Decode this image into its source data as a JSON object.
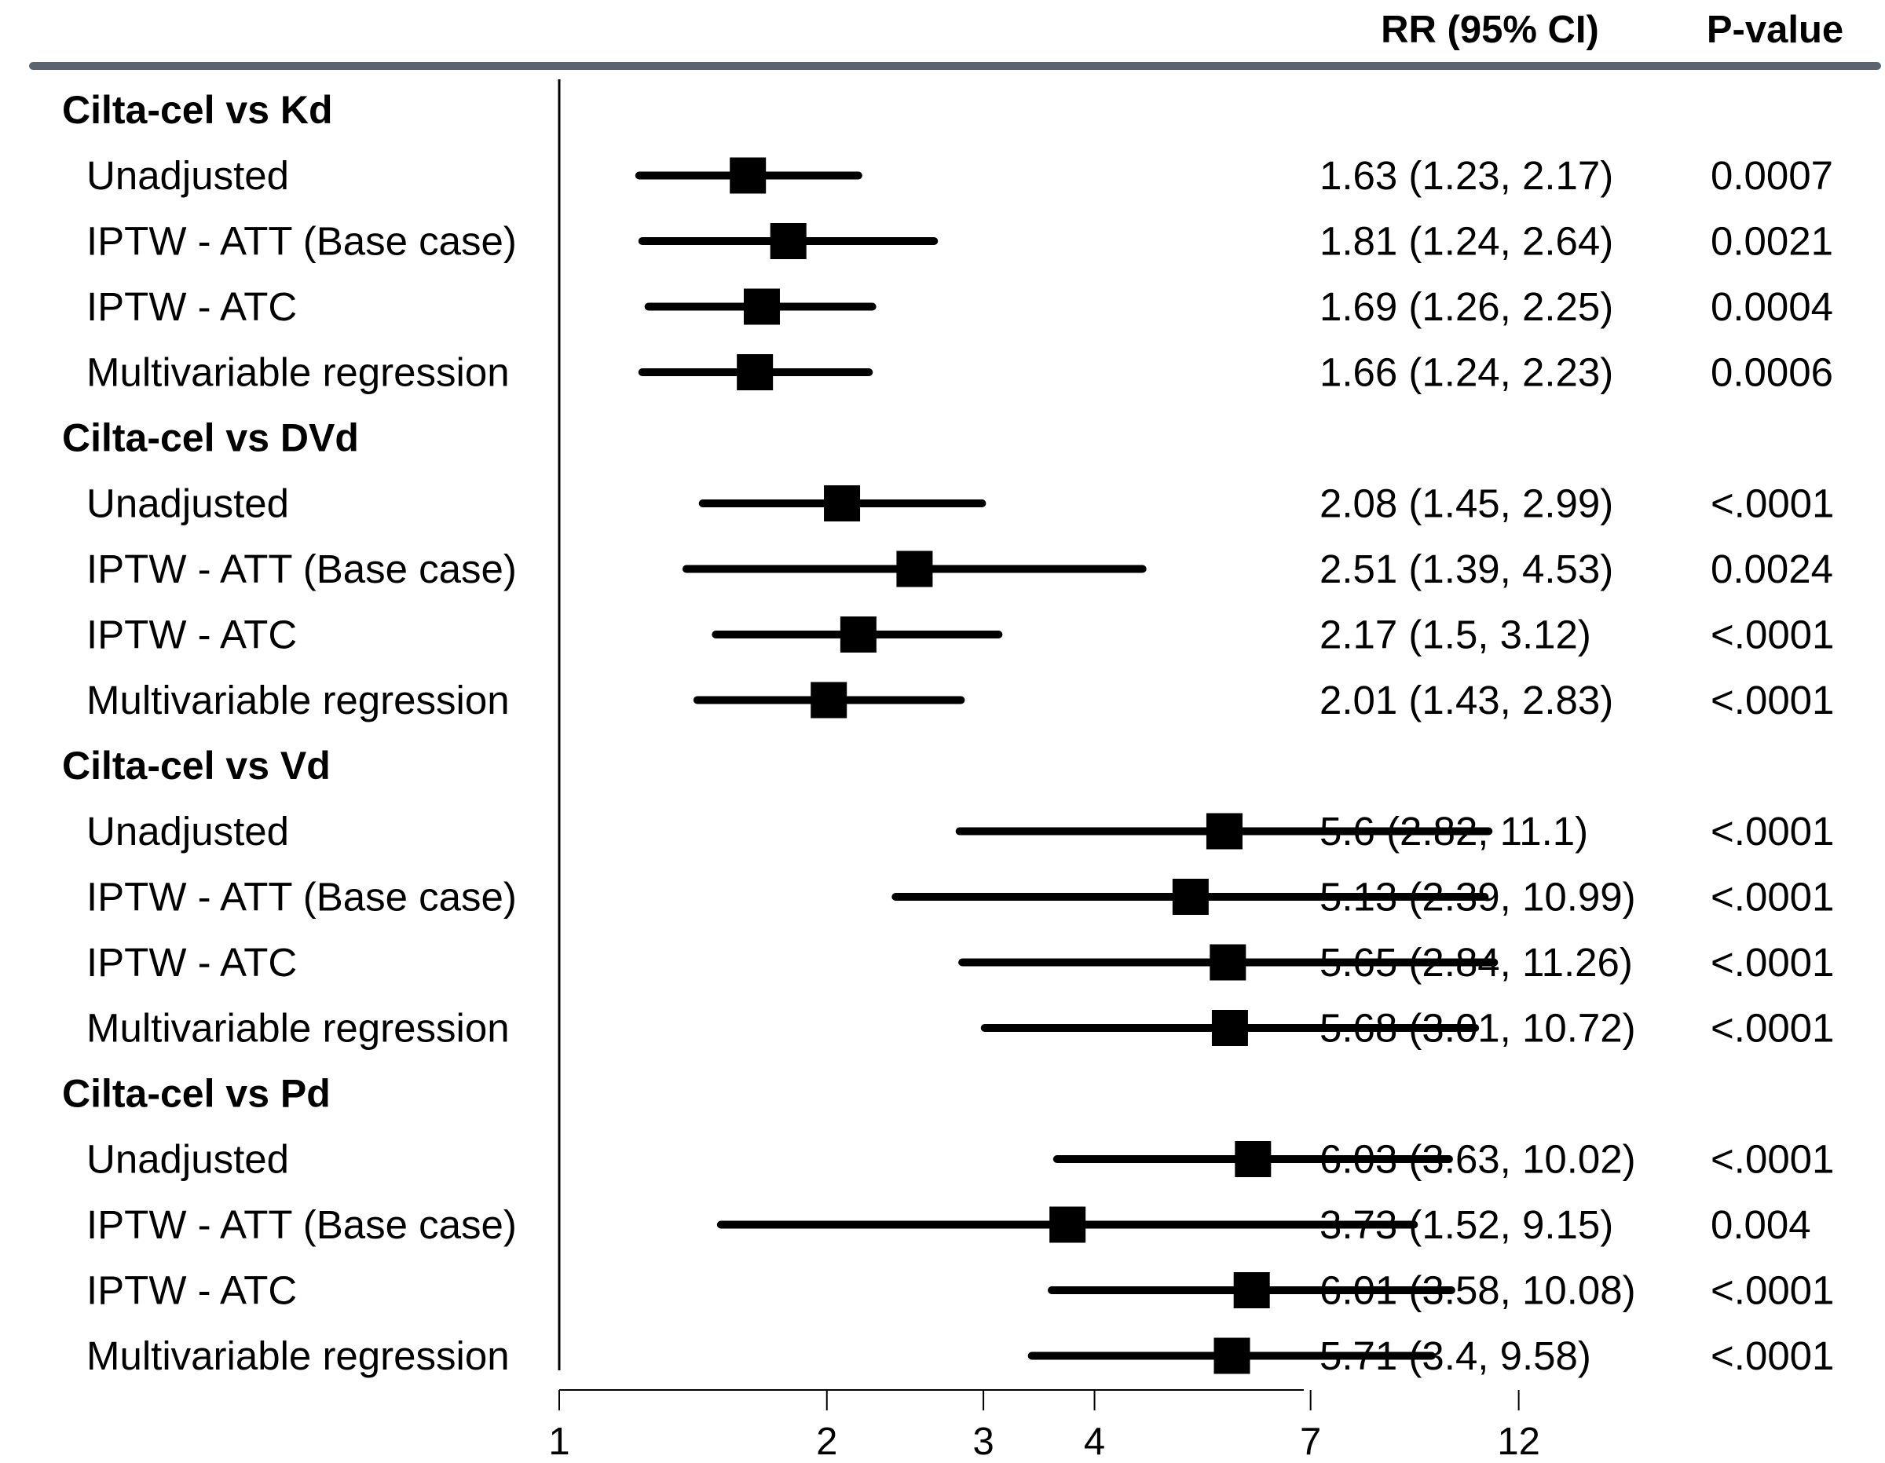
{
  "header": {
    "rr_label": "RR (95% CI)",
    "p_label": "P-value"
  },
  "colors": {
    "rule": "#5a6470",
    "ink": "#000000"
  },
  "chart_data": {
    "type": "forest",
    "title": "",
    "xlabel": "",
    "xscale": "log",
    "xlim": [
      1,
      18
    ],
    "xticks": [
      1,
      2,
      3,
      4,
      7,
      12
    ],
    "xtick_labels": [
      "1",
      "2",
      "3",
      "4",
      "7",
      "12"
    ],
    "reference_line": 1,
    "groups": [
      {
        "label": "Cilta-cel vs Kd",
        "rows": [
          {
            "label": "Unadjusted",
            "rr": 1.63,
            "lo": 1.23,
            "hi": 2.17,
            "rr_text": "1.63 (1.23, 2.17)",
            "p": "0.0007"
          },
          {
            "label": "IPTW - ATT (Base case)",
            "rr": 1.81,
            "lo": 1.24,
            "hi": 2.64,
            "rr_text": "1.81 (1.24, 2.64)",
            "p": "0.0021"
          },
          {
            "label": "IPTW - ATC",
            "rr": 1.69,
            "lo": 1.26,
            "hi": 2.25,
            "rr_text": "1.69 (1.26, 2.25)",
            "p": "0.0004"
          },
          {
            "label": "Multivariable regression",
            "rr": 1.66,
            "lo": 1.24,
            "hi": 2.23,
            "rr_text": "1.66 (1.24, 2.23)",
            "p": "0.0006"
          }
        ]
      },
      {
        "label": "Cilta-cel vs DVd",
        "rows": [
          {
            "label": "Unadjusted",
            "rr": 2.08,
            "lo": 1.45,
            "hi": 2.99,
            "rr_text": "2.08 (1.45, 2.99)",
            "p": "<.0001"
          },
          {
            "label": "IPTW - ATT (Base case)",
            "rr": 2.51,
            "lo": 1.39,
            "hi": 4.53,
            "rr_text": "2.51 (1.39, 4.53)",
            "p": "0.0024"
          },
          {
            "label": "IPTW - ATC",
            "rr": 2.17,
            "lo": 1.5,
            "hi": 3.12,
            "rr_text": "2.17 (1.5, 3.12)",
            "p": "<.0001"
          },
          {
            "label": "Multivariable regression",
            "rr": 2.01,
            "lo": 1.43,
            "hi": 2.83,
            "rr_text": "2.01 (1.43, 2.83)",
            "p": "<.0001"
          }
        ]
      },
      {
        "label": "Cilta-cel vs Vd",
        "rows": [
          {
            "label": "Unadjusted",
            "rr": 5.6,
            "lo": 2.82,
            "hi": 11.1,
            "rr_text": "5.6 (2.82, 11.1)",
            "p": "<.0001"
          },
          {
            "label": "IPTW - ATT (Base case)",
            "rr": 5.13,
            "lo": 2.39,
            "hi": 10.99,
            "rr_text": "5.13 (2.39, 10.99)",
            "p": "<.0001"
          },
          {
            "label": "IPTW - ATC",
            "rr": 5.65,
            "lo": 2.84,
            "hi": 11.26,
            "rr_text": "5.65 (2.84, 11.26)",
            "p": "<.0001"
          },
          {
            "label": "Multivariable regression",
            "rr": 5.68,
            "lo": 3.01,
            "hi": 10.72,
            "rr_text": "5.68 (3.01, 10.72)",
            "p": "<.0001"
          }
        ]
      },
      {
        "label": "Cilta-cel vs Pd",
        "rows": [
          {
            "label": "Unadjusted",
            "rr": 6.03,
            "lo": 3.63,
            "hi": 10.02,
            "rr_text": "6.03 (3.63, 10.02)",
            "p": "<.0001"
          },
          {
            "label": "IPTW - ATT (Base case)",
            "rr": 3.73,
            "lo": 1.52,
            "hi": 9.15,
            "rr_text": "3.73 (1.52, 9.15)",
            "p": "0.004"
          },
          {
            "label": "IPTW - ATC",
            "rr": 6.01,
            "lo": 3.58,
            "hi": 10.08,
            "rr_text": "6.01 (3.58, 10.08)",
            "p": "<.0001"
          },
          {
            "label": "Multivariable regression",
            "rr": 5.71,
            "lo": 3.4,
            "hi": 9.58,
            "rr_text": "5.71 (3.4, 9.58)",
            "p": "<.0001"
          }
        ]
      }
    ]
  }
}
